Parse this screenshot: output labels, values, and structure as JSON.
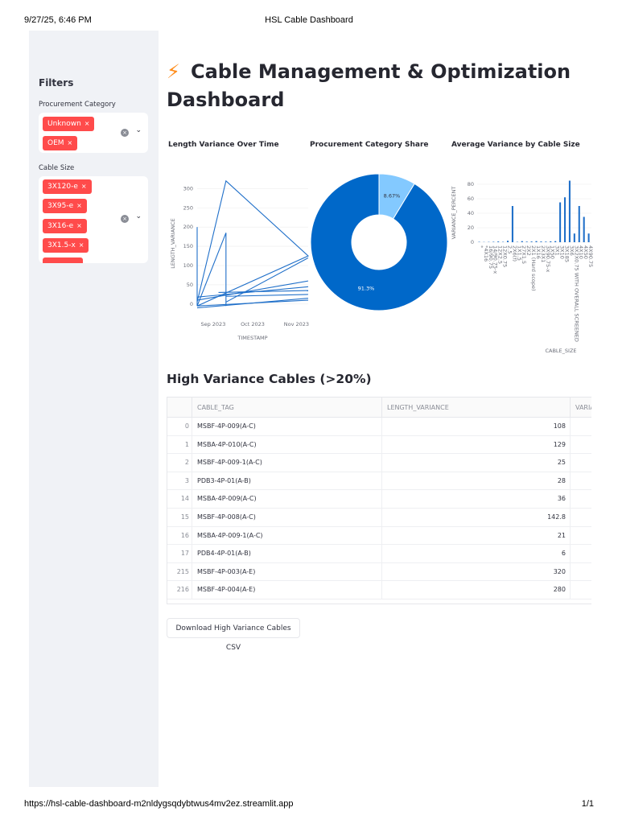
{
  "print": {
    "datetime": "9/27/25, 6:46 PM",
    "doc_title": "HSL Cable Dashboard",
    "url": "https://hsl-cable-dashboard-m2nldygsqdybtwus4mv2ez.streamlit.app",
    "page": "1/1"
  },
  "sidebar": {
    "heading": "Filters",
    "procurement": {
      "label": "Procurement Category",
      "tags": [
        "Unknown",
        "OEM"
      ]
    },
    "cable_size": {
      "label": "Cable Size",
      "tags": [
        "3X120-e",
        "3X95-e",
        "3X16-e",
        "3X1.5-x"
      ]
    },
    "tag_remove_glyph": "×",
    "clear_glyph": "×",
    "chevron_glyph": "⌄"
  },
  "main": {
    "title_icon": "⚡",
    "title": "Cable Management & Optimization Dashboard"
  },
  "chart_data": [
    {
      "type": "line",
      "title": "Length Variance Over Time",
      "xlabel": "TIMESTAMP",
      "ylabel": "LENGTH_VARIANCE",
      "x_ticks": [
        "Sep 2023",
        "Oct 2023",
        "Nov 2023"
      ],
      "y_ticks": [
        0,
        50,
        100,
        150,
        200,
        250,
        300
      ],
      "ylim": [
        -15,
        330
      ],
      "color": "#1f6fc9",
      "note_units": "x in days from 2023-09-01",
      "segments": [
        [
          [
            0,
            200
          ],
          [
            0,
            -5
          ]
        ],
        [
          [
            0,
            -5
          ],
          [
            27,
            185
          ],
          [
            27,
            -5
          ]
        ],
        [
          [
            0,
            5
          ],
          [
            27,
            320
          ],
          [
            104,
            125
          ],
          [
            0,
            -5
          ]
        ],
        [
          [
            0,
            -5
          ],
          [
            104,
            10
          ]
        ],
        [
          [
            0,
            10
          ],
          [
            104,
            60
          ]
        ],
        [
          [
            0,
            18
          ],
          [
            104,
            45
          ]
        ],
        [
          [
            27,
            20
          ],
          [
            104,
            25
          ]
        ],
        [
          [
            0,
            -10
          ],
          [
            104,
            15
          ]
        ],
        [
          [
            27,
            5
          ],
          [
            104,
            120
          ]
        ],
        [
          [
            20,
            30
          ],
          [
            104,
            35
          ]
        ]
      ]
    },
    {
      "type": "pie",
      "title": "Procurement Category Share",
      "slices": [
        {
          "value": 91.3,
          "label": "91.3%",
          "color": "#0068c9"
        },
        {
          "value": 8.67,
          "label": "8.67%",
          "color": "#83c9ff"
        }
      ],
      "hole": 0.4
    },
    {
      "type": "bar",
      "title": "Average Variance by Cable Size",
      "xlabel": "CABLE_SIZE",
      "ylabel": "VARIANCE_PERCENT",
      "y_ticks": [
        0,
        20,
        40,
        60,
        80
      ],
      "ylim": [
        0,
        90
      ],
      "color": "#1f6fc9",
      "categories": [
        "*",
        "*4X16",
        "16/90.75",
        "14/90.75-x",
        "12X2.5",
        "12X0.75",
        "2.5",
        "2X6(f)",
        "1X1.5",
        "27X1.5",
        "2X2",
        "2X1 (Hard scope)",
        "1X16",
        "2X3X1",
        "3X90.75-x",
        "1X50",
        "3X1",
        "3X10",
        "3X185",
        "3X6",
        "3X2X0.75 WITH OVERALL SCREENED",
        "4X10",
        "4X50",
        "4X90.75"
      ],
      "values": [
        0.5,
        0.3,
        0.4,
        0.6,
        1,
        0.5,
        2,
        50,
        0.5,
        1.5,
        0.8,
        1,
        1.5,
        1,
        0.8,
        1.2,
        1.5,
        55,
        62,
        85,
        12,
        50,
        35,
        12
      ]
    }
  ],
  "table": {
    "title": "High Variance Cables (>20%)",
    "columns": [
      "",
      "CABLE_TAG",
      "LENGTH_VARIANCE",
      "VARIA"
    ],
    "rows": [
      {
        "idx": "0",
        "tag": "MSBF-4P-009(A-C)",
        "variance": "108"
      },
      {
        "idx": "1",
        "tag": "MSBA-4P-010(A-C)",
        "variance": "129"
      },
      {
        "idx": "2",
        "tag": "MSBF-4P-009-1(A-C)",
        "variance": "25"
      },
      {
        "idx": "3",
        "tag": "PDB3-4P-01(A-B)",
        "variance": "28"
      },
      {
        "idx": "14",
        "tag": "MSBA-4P-009(A-C)",
        "variance": "36"
      },
      {
        "idx": "15",
        "tag": "MSBF-4P-008(A-C)",
        "variance": "142.8"
      },
      {
        "idx": "16",
        "tag": "MSBA-4P-009-1(A-C)",
        "variance": "21"
      },
      {
        "idx": "17",
        "tag": "PDB4-4P-01(A-B)",
        "variance": "6"
      },
      {
        "idx": "215",
        "tag": "MSBF-4P-003(A-E)",
        "variance": "320"
      },
      {
        "idx": "216",
        "tag": "MSBF-4P-004(A-E)",
        "variance": "280"
      }
    ]
  },
  "download_button": {
    "label": "Download High Variance Cables CSV"
  }
}
